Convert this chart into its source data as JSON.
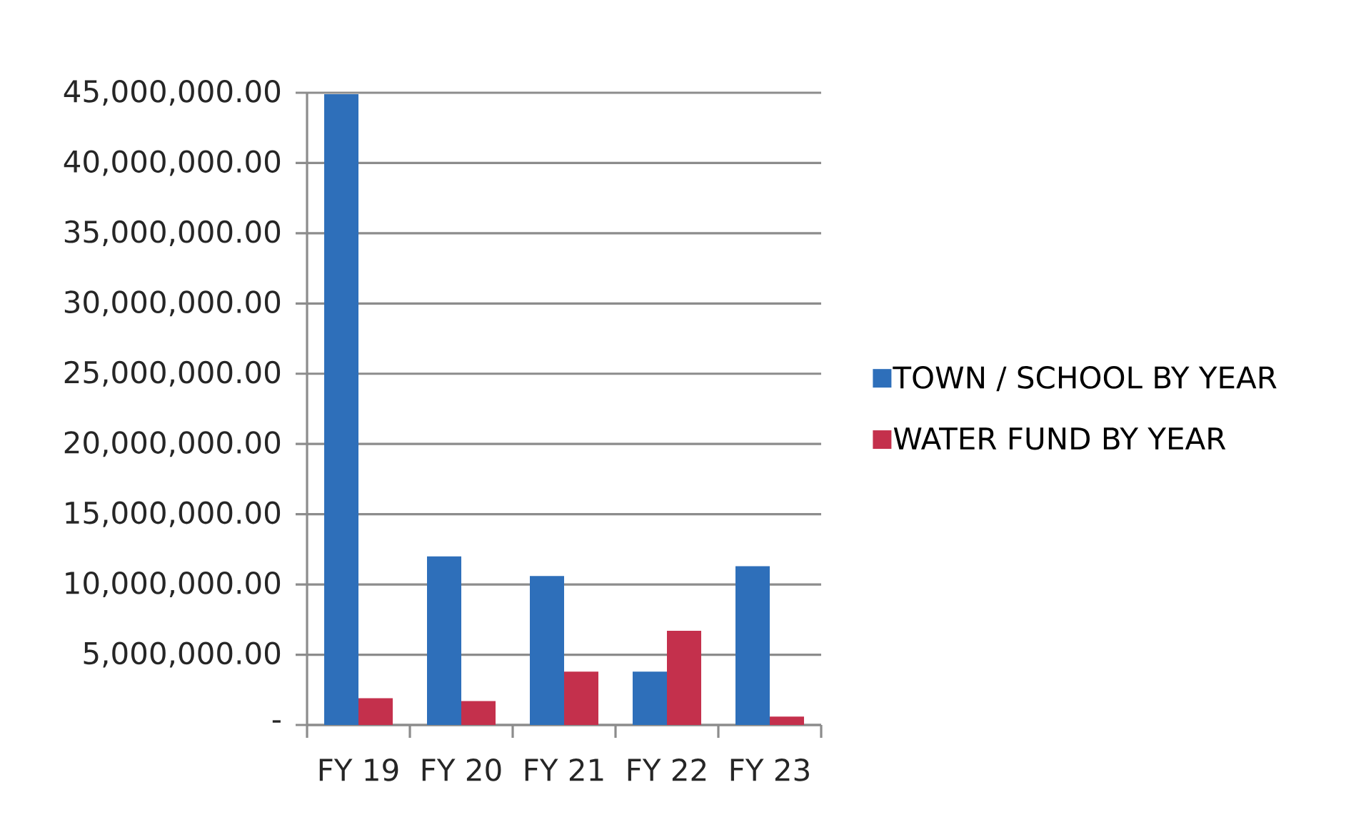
{
  "chart_data": {
    "type": "bar",
    "categories": [
      "FY 19",
      "FY 20",
      "FY 21",
      "FY 22",
      "FY 23"
    ],
    "series": [
      {
        "name": "TOWN / SCHOOL BY YEAR",
        "color": "#2e6fba",
        "values": [
          44900000,
          12000000,
          10600000,
          3800000,
          11300000
        ]
      },
      {
        "name": "WATER FUND BY YEAR",
        "color": "#c4304c",
        "values": [
          1900000,
          1700000,
          3800000,
          6700000,
          600000
        ]
      }
    ],
    "ylim": [
      0,
      45000000
    ],
    "yticks": [
      {
        "value": 0,
        "label": "-"
      },
      {
        "value": 5000000,
        "label": "5,000,000.00"
      },
      {
        "value": 10000000,
        "label": "10,000,000.00"
      },
      {
        "value": 15000000,
        "label": "15,000,000.00"
      },
      {
        "value": 20000000,
        "label": "20,000,000.00"
      },
      {
        "value": 25000000,
        "label": "25,000,000.00"
      },
      {
        "value": 30000000,
        "label": "30,000,000.00"
      },
      {
        "value": 35000000,
        "label": "35,000,000.00"
      },
      {
        "value": 40000000,
        "label": "40,000,000.00"
      },
      {
        "value": 45000000,
        "label": "45,000,000.00"
      }
    ],
    "grid": "y",
    "legend": "right"
  }
}
